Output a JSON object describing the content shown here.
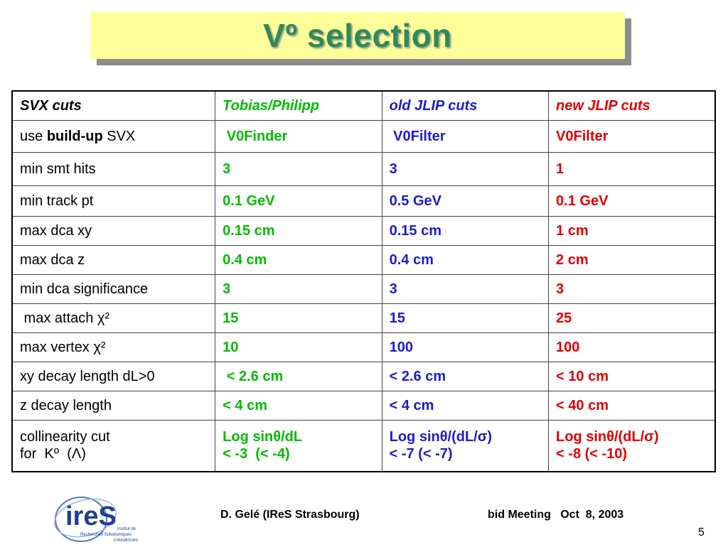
{
  "title": "Vº selection",
  "table": {
    "header": {
      "label": "SVX cuts",
      "tobias": "Tobias/Philipp",
      "old_jlip": " old JLIP cuts",
      "new_jlip": "new JLIP cuts"
    },
    "rows": [
      {
        "label_pre": "use ",
        "label_bold": "build-up",
        "label_post": " SVX",
        "tobias": " V0Finder",
        "old_jlip": " V0Filter",
        "new_jlip": "V0Filter"
      },
      {
        "label": "min smt hits",
        "tobias": "3",
        "old_jlip": "3",
        "new_jlip": "1"
      },
      {
        "label": "min track pt",
        "tobias": "0.1 GeV",
        "old_jlip": "0.5 GeV",
        "new_jlip": "0.1 GeV"
      },
      {
        "label": "max dca xy",
        "tobias": "0.15 cm",
        "old_jlip": "0.15 cm",
        "new_jlip": "1 cm"
      },
      {
        "label": "max dca z",
        "tobias": "0.4 cm",
        "old_jlip": "0.4 cm",
        "new_jlip": "2 cm"
      },
      {
        "label": "min dca significance",
        "tobias": "3",
        "old_jlip": "3",
        "new_jlip": "3"
      },
      {
        "label": " max attach χ²",
        "tobias": "15",
        "old_jlip": "15",
        "new_jlip": "25"
      },
      {
        "label": "max vertex χ²",
        "tobias": "10",
        "old_jlip": "100",
        "new_jlip": "100"
      },
      {
        "label": "xy decay length dL>0",
        "tobias": " < 2.6 cm",
        "old_jlip": "< 2.6 cm",
        "new_jlip": "< 10 cm"
      },
      {
        "label": "z decay length",
        "tobias": "< 4 cm",
        "old_jlip": "< 4 cm",
        "new_jlip": "< 40 cm"
      },
      {
        "label_line1": "collinearity cut",
        "label_line2": "for  Kº  (Λ)",
        "tobias_line1": "Log sinθ/dL",
        "tobias_line2": "< -3  (< -4)",
        "old_jlip_line1": "Log sinθ/(dL/σ)",
        "old_jlip_line2": "< -7 (< -7)",
        "new_jlip_line1": "Log sinθ/(dL/σ)",
        "new_jlip_line2": "< -8 (< -10)"
      }
    ]
  },
  "logo": {
    "text": "ireS",
    "line1": "Institut de",
    "line2": "Recherches Subatomiques",
    "line3": "STRASBOURG"
  },
  "footer": {
    "author": "D. Gelé (IReS Strasbourg)",
    "meeting": "bid Meeting   Oct  8, 2003",
    "page": "5"
  },
  "colors": {
    "title_green": "#2e8b57",
    "title_bg": "#ffff99",
    "tobias_green": "#00bb00",
    "old_jlip_blue": "#1c1ccc",
    "new_jlip_red": "#e00000",
    "logo_blue": "#1f3f8f"
  }
}
